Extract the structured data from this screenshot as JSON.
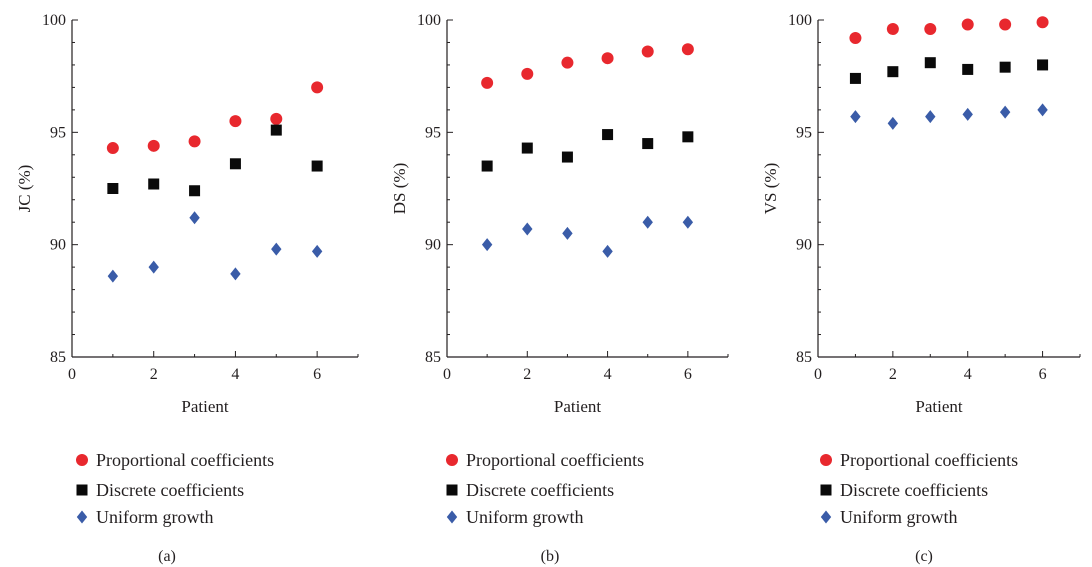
{
  "colors": {
    "proportional": "#e8282e",
    "discrete": "#0a0a0a",
    "uniform": "#3a5ca8",
    "axis": "#231f20"
  },
  "chart_data": [
    {
      "type": "scatter",
      "panel_label": "(a)",
      "xlabel": "Patient",
      "ylabel": "JC (%)",
      "xlim": [
        0,
        7
      ],
      "ylim": [
        85,
        100
      ],
      "xticks": [
        "0",
        "2",
        "4",
        "6"
      ],
      "yticks": [
        "85",
        "90",
        "95",
        "100"
      ],
      "grid": false,
      "legend_position": "below",
      "x": [
        1,
        2,
        3,
        4,
        5,
        6
      ],
      "series": [
        {
          "name": "Proportional coefficients",
          "marker": "circle",
          "color": "#e8282e",
          "values": [
            94.3,
            94.4,
            94.6,
            95.5,
            95.6,
            97.0
          ]
        },
        {
          "name": "Discrete coefficients",
          "marker": "square",
          "color": "#0a0a0a",
          "values": [
            92.5,
            92.7,
            92.4,
            93.6,
            95.1,
            93.5
          ]
        },
        {
          "name": "Uniform growth",
          "marker": "diamond",
          "color": "#3a5ca8",
          "values": [
            88.6,
            89.0,
            91.2,
            88.7,
            89.8,
            89.7
          ]
        }
      ]
    },
    {
      "type": "scatter",
      "panel_label": "(b)",
      "xlabel": "Patient",
      "ylabel": "DS (%)",
      "xlim": [
        0,
        7
      ],
      "ylim": [
        85,
        100
      ],
      "xticks": [
        "0",
        "2",
        "4",
        "6"
      ],
      "yticks": [
        "85",
        "90",
        "95",
        "100"
      ],
      "grid": false,
      "legend_position": "below",
      "x": [
        1,
        2,
        3,
        4,
        5,
        6
      ],
      "series": [
        {
          "name": "Proportional coefficients",
          "marker": "circle",
          "color": "#e8282e",
          "values": [
            97.2,
            97.6,
            98.1,
            98.3,
            98.6,
            98.7
          ]
        },
        {
          "name": "Discrete coefficients",
          "marker": "square",
          "color": "#0a0a0a",
          "values": [
            93.5,
            94.3,
            93.9,
            94.9,
            94.5,
            94.8
          ]
        },
        {
          "name": "Uniform growth",
          "marker": "diamond",
          "color": "#3a5ca8",
          "values": [
            90.0,
            90.7,
            90.5,
            89.7,
            91.0,
            91.0
          ]
        }
      ]
    },
    {
      "type": "scatter",
      "panel_label": "(c)",
      "xlabel": "Patient",
      "ylabel": "VS (%)",
      "xlim": [
        0,
        7
      ],
      "ylim": [
        85,
        100
      ],
      "xticks": [
        "0",
        "2",
        "4",
        "6"
      ],
      "yticks": [
        "85",
        "90",
        "95",
        "100"
      ],
      "grid": false,
      "legend_position": "below",
      "x": [
        1,
        2,
        3,
        4,
        5,
        6
      ],
      "series": [
        {
          "name": "Proportional coefficients",
          "marker": "circle",
          "color": "#e8282e",
          "values": [
            99.2,
            99.6,
            99.6,
            99.8,
            99.8,
            99.9
          ]
        },
        {
          "name": "Discrete coefficients",
          "marker": "square",
          "color": "#0a0a0a",
          "values": [
            97.4,
            97.7,
            98.1,
            97.8,
            97.9,
            98.0
          ]
        },
        {
          "name": "Uniform growth",
          "marker": "diamond",
          "color": "#3a5ca8",
          "values": [
            95.7,
            95.4,
            95.7,
            95.8,
            95.9,
            96.0
          ]
        }
      ]
    }
  ]
}
